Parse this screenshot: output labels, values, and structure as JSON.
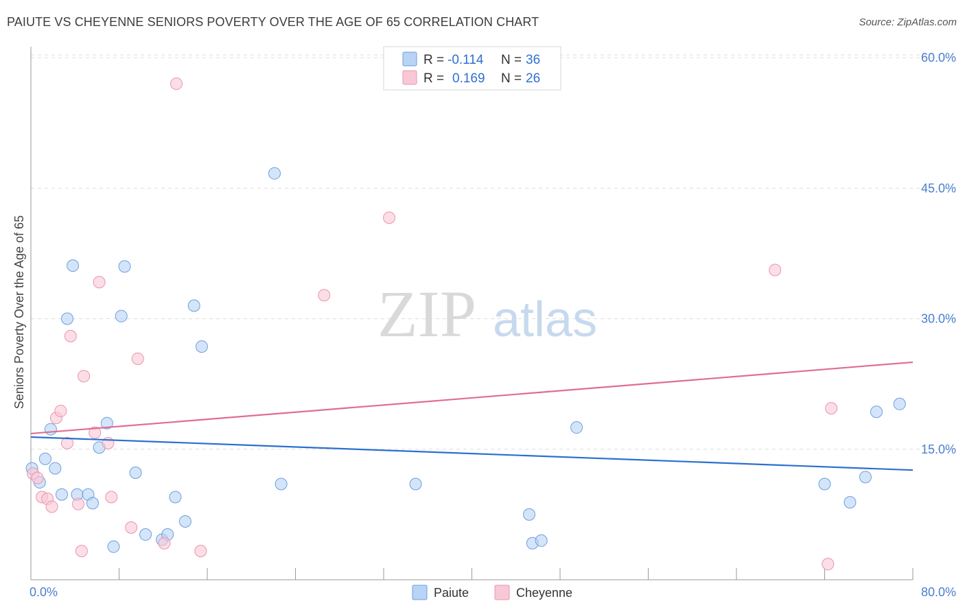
{
  "header": {
    "title": "PAIUTE VS CHEYENNE SENIORS POVERTY OVER THE AGE OF 65 CORRELATION CHART",
    "source": "Source: ZipAtlas.com"
  },
  "watermark": {
    "zip": "ZIP",
    "atlas": "atlas"
  },
  "colors": {
    "paiute_fill": "#b8d4f5",
    "paiute_stroke": "#6c9de0",
    "paiute_line": "#2b6fcf",
    "cheyenne_fill": "#f8c8d6",
    "cheyenne_stroke": "#eb93ad",
    "cheyenne_line": "#e06c94",
    "grid": "#dcdcdc",
    "axis": "#999999"
  },
  "legend": {
    "rows": [
      {
        "series": "Paiute",
        "r_label": "R =",
        "r_value": "-0.114",
        "n_label": "N =",
        "n_value": "36"
      },
      {
        "series": "Cheyenne",
        "r_label": "R =",
        "r_value": "0.169",
        "n_label": "N =",
        "n_value": "26"
      }
    ]
  },
  "chart_data": {
    "type": "scatter",
    "title": "PAIUTE VS CHEYENNE SENIORS POVERTY OVER THE AGE OF 65 CORRELATION CHART",
    "xlabel": "",
    "ylabel": "Seniors Poverty Over the Age of 65",
    "xlim": [
      0,
      80
    ],
    "ylim": [
      0,
      60
    ],
    "x_tick_labels": [
      "0.0%",
      "80.0%"
    ],
    "y_ticks": [
      15,
      30,
      45,
      60
    ],
    "y_tick_labels": [
      "15.0%",
      "30.0%",
      "45.0%",
      "60.0%"
    ],
    "legend_position": "top-center",
    "series": [
      {
        "name": "Paiute",
        "points": [
          [
            0.1,
            12.8
          ],
          [
            0.8,
            11.2
          ],
          [
            1.3,
            13.9
          ],
          [
            1.8,
            17.3
          ],
          [
            2.2,
            12.8
          ],
          [
            2.8,
            9.8
          ],
          [
            3.3,
            30.0
          ],
          [
            3.8,
            36.1
          ],
          [
            4.2,
            9.8
          ],
          [
            5.2,
            9.8
          ],
          [
            5.6,
            8.8
          ],
          [
            6.2,
            15.2
          ],
          [
            6.9,
            18.0
          ],
          [
            7.5,
            3.8
          ],
          [
            8.2,
            30.3
          ],
          [
            8.5,
            36.0
          ],
          [
            9.5,
            12.3
          ],
          [
            10.4,
            5.2
          ],
          [
            11.9,
            4.6
          ],
          [
            12.4,
            5.2
          ],
          [
            13.1,
            9.5
          ],
          [
            14.0,
            6.7
          ],
          [
            14.8,
            31.5
          ],
          [
            15.5,
            26.8
          ],
          [
            22.1,
            46.7
          ],
          [
            22.7,
            11.0
          ],
          [
            34.9,
            11.0
          ],
          [
            45.2,
            7.5
          ],
          [
            45.5,
            4.2
          ],
          [
            46.3,
            4.5
          ],
          [
            49.5,
            17.5
          ],
          [
            72.0,
            11.0
          ],
          [
            74.3,
            8.9
          ],
          [
            75.7,
            11.8
          ],
          [
            76.7,
            19.3
          ],
          [
            78.8,
            20.2
          ]
        ]
      },
      {
        "name": "Cheyenne",
        "points": [
          [
            0.2,
            12.2
          ],
          [
            0.6,
            11.7
          ],
          [
            1.0,
            9.5
          ],
          [
            1.5,
            9.3
          ],
          [
            1.9,
            8.4
          ],
          [
            2.3,
            18.6
          ],
          [
            2.7,
            19.4
          ],
          [
            3.3,
            15.7
          ],
          [
            3.6,
            28.0
          ],
          [
            4.3,
            8.7
          ],
          [
            4.6,
            3.3
          ],
          [
            4.8,
            23.4
          ],
          [
            5.8,
            16.9
          ],
          [
            6.2,
            34.2
          ],
          [
            7.0,
            15.7
          ],
          [
            7.3,
            9.5
          ],
          [
            9.1,
            6.0
          ],
          [
            9.7,
            25.4
          ],
          [
            12.1,
            4.2
          ],
          [
            13.2,
            57.0
          ],
          [
            15.4,
            3.3
          ],
          [
            26.6,
            32.7
          ],
          [
            32.5,
            41.6
          ],
          [
            67.5,
            35.6
          ],
          [
            72.3,
            1.8
          ],
          [
            72.6,
            19.7
          ]
        ]
      }
    ],
    "trend_lines": [
      {
        "name": "Paiute",
        "start": [
          0,
          16.4
        ],
        "end": [
          80,
          12.6
        ]
      },
      {
        "name": "Cheyenne",
        "start": [
          0,
          16.8
        ],
        "end": [
          80,
          25.0
        ]
      }
    ]
  }
}
